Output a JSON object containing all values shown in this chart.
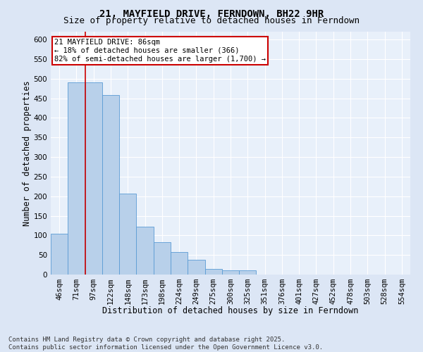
{
  "title": "21, MAYFIELD DRIVE, FERNDOWN, BH22 9HR",
  "subtitle": "Size of property relative to detached houses in Ferndown",
  "xlabel": "Distribution of detached houses by size in Ferndown",
  "ylabel": "Number of detached properties",
  "footer_line1": "Contains HM Land Registry data © Crown copyright and database right 2025.",
  "footer_line2": "Contains public sector information licensed under the Open Government Licence v3.0.",
  "categories": [
    "46sqm",
    "71sqm",
    "97sqm",
    "122sqm",
    "148sqm",
    "173sqm",
    "198sqm",
    "224sqm",
    "249sqm",
    "275sqm",
    "300sqm",
    "325sqm",
    "351sqm",
    "376sqm",
    "401sqm",
    "427sqm",
    "452sqm",
    "478sqm",
    "503sqm",
    "528sqm",
    "554sqm"
  ],
  "values": [
    105,
    490,
    490,
    458,
    207,
    122,
    82,
    57,
    38,
    14,
    10,
    10,
    0,
    0,
    0,
    0,
    0,
    0,
    0,
    0,
    0
  ],
  "bar_color": "#b8d0ea",
  "bar_edge_color": "#5b9bd5",
  "annotation_box_text": "21 MAYFIELD DRIVE: 86sqm\n← 18% of detached houses are smaller (366)\n82% of semi-detached houses are larger (1,700) →",
  "annotation_box_color": "#cc0000",
  "vline_color": "#cc0000",
  "vline_pos": 1.5,
  "ylim": [
    0,
    620
  ],
  "yticks": [
    0,
    50,
    100,
    150,
    200,
    250,
    300,
    350,
    400,
    450,
    500,
    550,
    600
  ],
  "bg_color": "#dce6f5",
  "plot_bg_color": "#e8f0fa",
  "grid_color": "#ffffff",
  "title_fontsize": 10,
  "subtitle_fontsize": 9,
  "axis_label_fontsize": 8.5,
  "tick_fontsize": 7.5,
  "annotation_fontsize": 7.5,
  "footer_fontsize": 6.5
}
